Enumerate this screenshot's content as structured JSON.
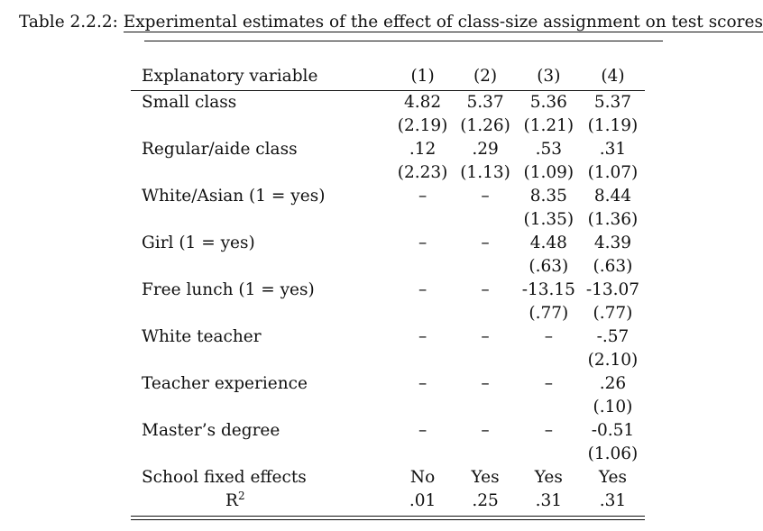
{
  "caption": {
    "label": "Table 2.2.2:",
    "title": "Experimental estimates of the effect of class-size assignment on test scores"
  },
  "table": {
    "header": {
      "var": "Explanatory variable",
      "cols": [
        "(1)",
        "(2)",
        "(3)",
        "(4)"
      ]
    },
    "rows": [
      {
        "var": "Small class",
        "vals": [
          "4.82",
          "5.37",
          "5.36",
          "5.37"
        ]
      },
      {
        "var": "",
        "vals": [
          "(2.19)",
          "(1.26)",
          "(1.21)",
          "(1.19)"
        ]
      },
      {
        "var": "Regular/aide class",
        "vals": [
          ".12",
          ".29",
          ".53",
          ".31"
        ]
      },
      {
        "var": "",
        "vals": [
          "(2.23)",
          "(1.13)",
          "(1.09)",
          "(1.07)"
        ]
      },
      {
        "var": "White/Asian (1 = yes)",
        "vals": [
          "–",
          "–",
          "8.35",
          "8.44"
        ]
      },
      {
        "var": "",
        "vals": [
          "",
          "",
          "(1.35)",
          "(1.36)"
        ]
      },
      {
        "var": "Girl (1 = yes)",
        "vals": [
          "–",
          "–",
          "4.48",
          "4.39"
        ]
      },
      {
        "var": "",
        "vals": [
          "",
          "",
          "(.63)",
          "(.63)"
        ]
      },
      {
        "var": "Free lunch (1 = yes)",
        "vals": [
          "–",
          "–",
          "-13.15",
          "-13.07"
        ]
      },
      {
        "var": "",
        "vals": [
          "",
          "",
          "(.77)",
          "(.77)"
        ]
      },
      {
        "var": "White teacher",
        "vals": [
          "–",
          "–",
          "–",
          "-.57"
        ]
      },
      {
        "var": "",
        "vals": [
          "",
          "",
          "",
          "(2.10)"
        ]
      },
      {
        "var": "Teacher experience",
        "vals": [
          "–",
          "–",
          "–",
          ".26"
        ]
      },
      {
        "var": "",
        "vals": [
          "",
          "",
          "",
          "(.10)"
        ]
      },
      {
        "var": "Master’s degree",
        "vals": [
          "–",
          "–",
          "–",
          "-0.51"
        ]
      },
      {
        "var": "",
        "vals": [
          "",
          "",
          "",
          "(1.06)"
        ]
      },
      {
        "var": "School fixed effects",
        "vals": [
          "No",
          "Yes",
          "Yes",
          "Yes"
        ]
      }
    ],
    "r2": {
      "label": "R",
      "sup": "2",
      "vals": [
        ".01",
        ".25",
        ".31",
        ".31"
      ]
    }
  }
}
